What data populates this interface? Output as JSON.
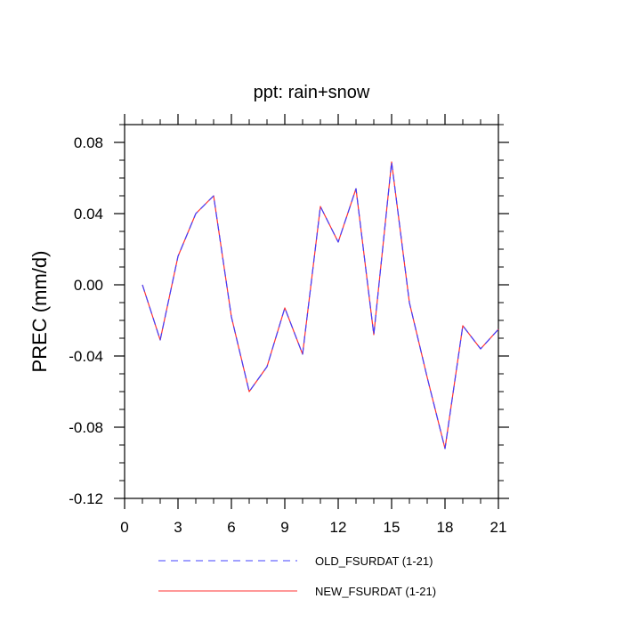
{
  "chart_data": {
    "type": "line",
    "title": "ppt: rain+snow",
    "xlabel": "",
    "ylabel": "PREC  (mm/d)",
    "xlim": [
      0,
      21
    ],
    "ylim": [
      -0.12,
      0.09
    ],
    "xticks": [
      0,
      3,
      6,
      9,
      12,
      15,
      18,
      21
    ],
    "xtick_labels": [
      "0",
      "3",
      "6",
      "9",
      "12",
      "15",
      "18",
      "21"
    ],
    "yticks": [
      -0.12,
      -0.08,
      -0.04,
      0.0,
      0.04,
      0.08
    ],
    "ytick_labels": [
      "-0.12",
      "-0.08",
      "-0.04",
      "0.00",
      "0.04",
      "0.08"
    ],
    "grid": false,
    "legend_position": "bottom",
    "x": [
      1,
      2,
      3,
      4,
      5,
      6,
      7,
      8,
      9,
      10,
      11,
      12,
      13,
      14,
      15,
      16,
      17,
      18,
      19,
      20,
      21
    ],
    "series": [
      {
        "name": "OLD_FSURDAT (1-21)",
        "color": "#4040ff",
        "dash": "dashed",
        "values": [
          0.0,
          -0.031,
          0.016,
          0.04,
          0.05,
          -0.018,
          -0.06,
          -0.046,
          -0.013,
          -0.039,
          0.044,
          0.024,
          0.054,
          -0.028,
          0.069,
          -0.01,
          -0.052,
          -0.092,
          -0.023,
          -0.036,
          -0.025
        ]
      },
      {
        "name": "NEW_FSURDAT (1-21)",
        "color": "#ff3030",
        "dash": "solid",
        "values": [
          0.0,
          -0.031,
          0.016,
          0.04,
          0.05,
          -0.018,
          -0.06,
          -0.046,
          -0.013,
          -0.039,
          0.044,
          0.024,
          0.054,
          -0.028,
          0.069,
          -0.01,
          -0.052,
          -0.092,
          -0.023,
          -0.036,
          -0.025
        ]
      }
    ]
  }
}
